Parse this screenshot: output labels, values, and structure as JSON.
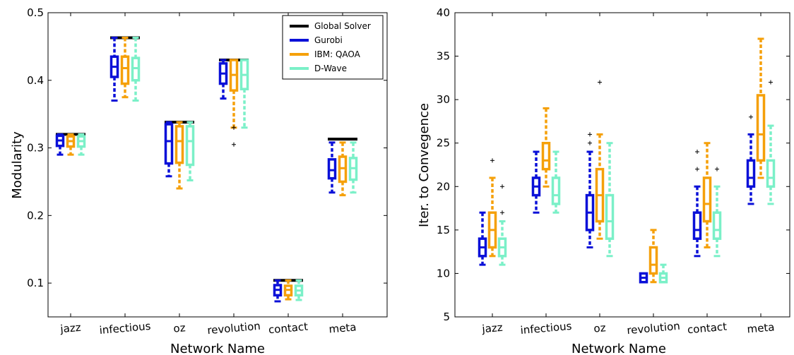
{
  "colors": {
    "global": "#000000",
    "gurobi": "#0a10d8",
    "qaoa": "#f5a00a",
    "dwave": "#7bf0c8"
  },
  "chart_data": [
    {
      "type": "box",
      "xlabel": "Network Name",
      "ylabel": "Modularity",
      "ylim": [
        0.05,
        0.5
      ],
      "yticks": [
        0.1,
        0.2,
        0.3,
        0.4,
        0.5
      ],
      "yticklabels": [
        "0.1",
        "0.2",
        "0.3",
        "0.4",
        "0.5"
      ],
      "categories": [
        "jazz",
        "infectious",
        "oz",
        "revolution",
        "contact",
        "meta"
      ],
      "legend": {
        "placement": "top-right",
        "entries": [
          "Global Solver",
          "Gurobi",
          "IBM: QAOA",
          "D-Wave"
        ]
      },
      "global_solver": [
        0.32,
        0.463,
        0.338,
        0.43,
        0.104,
        0.313
      ],
      "series": [
        {
          "name": "Gurobi",
          "boxes": [
            {
              "whislo": 0.29,
              "q1": 0.303,
              "med": 0.311,
              "q3": 0.318,
              "whishi": 0.32
            },
            {
              "whislo": 0.37,
              "q1": 0.405,
              "med": 0.42,
              "q3": 0.435,
              "whishi": 0.463
            },
            {
              "whislo": 0.258,
              "q1": 0.277,
              "med": 0.31,
              "q3": 0.335,
              "whishi": 0.338
            },
            {
              "whislo": 0.373,
              "q1": 0.395,
              "med": 0.41,
              "q3": 0.425,
              "whishi": 0.43
            },
            {
              "whislo": 0.073,
              "q1": 0.082,
              "med": 0.09,
              "q3": 0.097,
              "whishi": 0.104
            },
            {
              "whislo": 0.234,
              "q1": 0.255,
              "med": 0.267,
              "q3": 0.283,
              "whishi": 0.308
            }
          ],
          "outliers": [
            [],
            [],
            [],
            [],
            [],
            []
          ]
        },
        {
          "name": "IBM: QAOA",
          "boxes": [
            {
              "whislo": 0.29,
              "q1": 0.302,
              "med": 0.31,
              "q3": 0.317,
              "whishi": 0.32
            },
            {
              "whislo": 0.375,
              "q1": 0.395,
              "med": 0.418,
              "q3": 0.435,
              "whishi": 0.463
            },
            {
              "whislo": 0.24,
              "q1": 0.278,
              "med": 0.31,
              "q3": 0.332,
              "whishi": 0.338
            },
            {
              "whislo": 0.33,
              "q1": 0.385,
              "med": 0.408,
              "q3": 0.43,
              "whishi": 0.43
            },
            {
              "whislo": 0.076,
              "q1": 0.082,
              "med": 0.09,
              "q3": 0.096,
              "whishi": 0.104
            },
            {
              "whislo": 0.23,
              "q1": 0.25,
              "med": 0.27,
              "q3": 0.287,
              "whishi": 0.308
            }
          ],
          "outliers": [
            [],
            [],
            [],
            [
              0.33,
              0.305
            ],
            [],
            []
          ]
        },
        {
          "name": "D-Wave",
          "boxes": [
            {
              "whislo": 0.29,
              "q1": 0.302,
              "med": 0.31,
              "q3": 0.317,
              "whishi": 0.32
            },
            {
              "whislo": 0.37,
              "q1": 0.4,
              "med": 0.418,
              "q3": 0.433,
              "whishi": 0.463
            },
            {
              "whislo": 0.252,
              "q1": 0.275,
              "med": 0.31,
              "q3": 0.332,
              "whishi": 0.338
            },
            {
              "whislo": 0.33,
              "q1": 0.387,
              "med": 0.408,
              "q3": 0.43,
              "whishi": 0.43
            },
            {
              "whislo": 0.075,
              "q1": 0.082,
              "med": 0.089,
              "q3": 0.096,
              "whishi": 0.104
            },
            {
              "whislo": 0.234,
              "q1": 0.253,
              "med": 0.27,
              "q3": 0.285,
              "whishi": 0.308
            }
          ],
          "outliers": [
            [],
            [],
            [],
            [],
            [],
            []
          ]
        }
      ]
    },
    {
      "type": "box",
      "xlabel": "Network Name",
      "ylabel": "Iter. to Convegence",
      "ylim": [
        5,
        40
      ],
      "yticks": [
        5,
        10,
        15,
        20,
        25,
        30,
        35,
        40
      ],
      "yticklabels": [
        "5",
        "10",
        "15",
        "20",
        "25",
        "30",
        "35",
        "40"
      ],
      "categories": [
        "jazz",
        "infectious",
        "oz",
        "revolution",
        "contact",
        "meta"
      ],
      "series": [
        {
          "name": "Gurobi",
          "boxes": [
            {
              "whislo": 11,
              "q1": 12,
              "med": 13,
              "q3": 14,
              "whishi": 17
            },
            {
              "whislo": 17,
              "q1": 19,
              "med": 20,
              "q3": 21,
              "whishi": 24
            },
            {
              "whislo": 13,
              "q1": 15,
              "med": 17,
              "q3": 19,
              "whishi": 24
            },
            {
              "whislo": 9,
              "q1": 9,
              "med": 9.5,
              "q3": 10,
              "whishi": 10
            },
            {
              "whislo": 12,
              "q1": 14,
              "med": 15,
              "q3": 17,
              "whishi": 20
            },
            {
              "whislo": 18,
              "q1": 20,
              "med": 21,
              "q3": 23,
              "whishi": 26
            }
          ],
          "outliers": [
            [],
            [],
            [
              26,
              25
            ],
            [],
            [
              24,
              22
            ],
            [
              28
            ]
          ]
        },
        {
          "name": "IBM: QAOA",
          "boxes": [
            {
              "whislo": 12,
              "q1": 13,
              "med": 15,
              "q3": 17,
              "whishi": 21
            },
            {
              "whislo": 20,
              "q1": 22,
              "med": 23,
              "q3": 25,
              "whishi": 29
            },
            {
              "whislo": 14,
              "q1": 16,
              "med": 19,
              "q3": 22,
              "whishi": 26
            },
            {
              "whislo": 9,
              "q1": 10,
              "med": 11,
              "q3": 13,
              "whishi": 15
            },
            {
              "whislo": 13,
              "q1": 16,
              "med": 18,
              "q3": 21,
              "whishi": 25
            },
            {
              "whislo": 21,
              "q1": 23,
              "med": 26,
              "q3": 30.5,
              "whishi": 37
            }
          ],
          "outliers": [
            [
              23
            ],
            [],
            [
              32
            ],
            [],
            [],
            []
          ]
        },
        {
          "name": "D-Wave",
          "boxes": [
            {
              "whislo": 11,
              "q1": 12,
              "med": 13,
              "q3": 14,
              "whishi": 16
            },
            {
              "whislo": 17,
              "q1": 18,
              "med": 19,
              "q3": 21,
              "whishi": 24
            },
            {
              "whislo": 12,
              "q1": 14,
              "med": 16,
              "q3": 19,
              "whishi": 25
            },
            {
              "whislo": 9,
              "q1": 9,
              "med": 9.5,
              "q3": 10,
              "whishi": 11
            },
            {
              "whislo": 12,
              "q1": 14,
              "med": 15,
              "q3": 17,
              "whishi": 20
            },
            {
              "whislo": 18,
              "q1": 20,
              "med": 21,
              "q3": 23,
              "whishi": 27
            }
          ],
          "outliers": [
            [
              20,
              17
            ],
            [],
            [],
            [],
            [
              22
            ],
            [
              32
            ]
          ]
        }
      ]
    }
  ]
}
